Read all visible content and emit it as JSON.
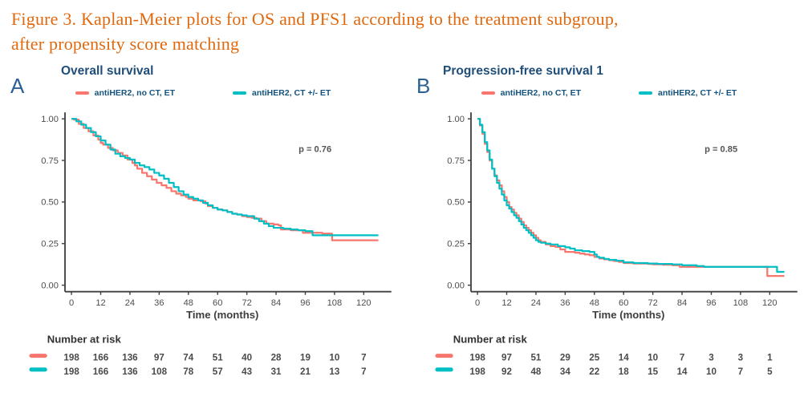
{
  "figure": {
    "title_line1": "Figure 3. Kaplan-Meier plots for OS and PFS1 according to the treatment subgroup,",
    "title_line2": "after propensity score matching"
  },
  "colors": {
    "title_orange": "#e0690f",
    "heading_navy": "#1f4e79",
    "panel_letter_blue": "#2d6094",
    "axis_gray": "#3f3f3f",
    "text_gray": "#4d4d4d",
    "series_red": "#f8766d",
    "series_teal": "#00bfc4"
  },
  "chart_data": [
    {
      "type": "line",
      "subtype": "kaplan-meier-step",
      "panel_label": "A",
      "title": "Overall survival",
      "xlabel": "Time (months)",
      "ylabel": "",
      "x_ticks": [
        0,
        12,
        24,
        36,
        48,
        60,
        72,
        84,
        96,
        108,
        120
      ],
      "y_ticks": [
        "0.00",
        "0.25",
        "0.50",
        "0.75",
        "1.00"
      ],
      "xlim": [
        0,
        126
      ],
      "ylim": [
        0,
        1
      ],
      "grid": false,
      "p_label": "p = 0.76",
      "p_x": 100,
      "p_y": 0.8,
      "legend": [
        {
          "name": "antiHER2, no CT, ET",
          "color": "#f8766d"
        },
        {
          "name": "antiHER2, CT +/- ET",
          "color": "#00bfc4"
        }
      ],
      "series": [
        {
          "name": "antiHER2, no CT, ET",
          "color": "#f8766d",
          "x": [
            0,
            1,
            3,
            5,
            7,
            9,
            11,
            12,
            13,
            15,
            17,
            19,
            21,
            23,
            25,
            26,
            27,
            29,
            31,
            33,
            35,
            37,
            39,
            41,
            43,
            45,
            47,
            48,
            50,
            53,
            55,
            56,
            58,
            60,
            62,
            64,
            66,
            68,
            70,
            72,
            74,
            76,
            78,
            80,
            83,
            85,
            86,
            90,
            95,
            103,
            107,
            126
          ],
          "y": [
            1.0,
            0.995,
            0.97,
            0.945,
            0.925,
            0.9,
            0.875,
            0.855,
            0.845,
            0.825,
            0.81,
            0.795,
            0.78,
            0.755,
            0.735,
            0.72,
            0.7,
            0.675,
            0.655,
            0.635,
            0.615,
            0.6,
            0.585,
            0.565,
            0.55,
            0.54,
            0.53,
            0.52,
            0.51,
            0.505,
            0.49,
            0.475,
            0.465,
            0.455,
            0.45,
            0.44,
            0.43,
            0.425,
            0.415,
            0.41,
            0.405,
            0.4,
            0.385,
            0.37,
            0.365,
            0.36,
            0.335,
            0.33,
            0.315,
            0.31,
            0.27,
            0.27
          ]
        },
        {
          "name": "antiHER2, CT +/- ET",
          "color": "#00bfc4",
          "x": [
            0,
            2,
            4,
            6,
            8,
            10,
            12,
            14,
            16,
            18,
            20,
            22,
            24,
            26,
            28,
            30,
            32,
            34,
            36,
            38,
            40,
            42,
            44,
            46,
            48,
            50,
            52,
            54,
            56,
            58,
            60,
            62,
            64,
            66,
            68,
            70,
            72,
            75,
            77,
            79,
            81,
            83,
            87,
            90,
            93,
            96,
            99,
            126
          ],
          "y": [
            1.0,
            0.985,
            0.965,
            0.945,
            0.92,
            0.895,
            0.87,
            0.845,
            0.815,
            0.79,
            0.775,
            0.765,
            0.755,
            0.735,
            0.72,
            0.71,
            0.695,
            0.675,
            0.66,
            0.64,
            0.615,
            0.59,
            0.565,
            0.545,
            0.53,
            0.52,
            0.51,
            0.495,
            0.48,
            0.465,
            0.455,
            0.45,
            0.44,
            0.43,
            0.425,
            0.42,
            0.415,
            0.4,
            0.385,
            0.37,
            0.355,
            0.345,
            0.34,
            0.335,
            0.33,
            0.325,
            0.3,
            0.3
          ]
        }
      ],
      "number_at_risk": {
        "title": "Number at risk",
        "rows": [
          {
            "name": "antiHER2, no CT, ET",
            "color": "#f8766d",
            "values": [
              198,
              166,
              136,
              97,
              74,
              51,
              40,
              28,
              19,
              10,
              7
            ]
          },
          {
            "name": "antiHER2, CT +/- ET",
            "color": "#00bfc4",
            "values": [
              198,
              166,
              136,
              108,
              78,
              57,
              43,
              31,
              21,
              13,
              7
            ]
          }
        ]
      }
    },
    {
      "type": "line",
      "subtype": "kaplan-meier-step",
      "panel_label": "B",
      "title": "Progression-free survival 1",
      "xlabel": "Time (months)",
      "ylabel": "",
      "x_ticks": [
        0,
        12,
        24,
        36,
        48,
        60,
        72,
        84,
        96,
        108,
        120
      ],
      "y_ticks": [
        "0.00",
        "0.25",
        "0.50",
        "0.75",
        "1.00"
      ],
      "xlim": [
        0,
        126
      ],
      "ylim": [
        0,
        1
      ],
      "grid": false,
      "p_label": "p = 0.85",
      "p_x": 100,
      "p_y": 0.8,
      "legend": [
        {
          "name": "antiHER2, no CT, ET",
          "color": "#f8766d"
        },
        {
          "name": "antiHER2, CT +/- ET",
          "color": "#00bfc4"
        }
      ],
      "series": [
        {
          "name": "antiHER2, no CT, ET",
          "color": "#f8766d",
          "x": [
            0,
            1,
            2,
            3,
            4,
            5,
            6,
            7,
            8,
            9,
            10,
            11,
            12,
            13,
            14,
            15,
            16,
            17,
            18,
            19,
            20,
            21,
            22,
            23,
            24,
            25,
            26,
            28,
            30,
            32,
            34,
            36,
            40,
            42,
            44,
            46,
            48,
            50,
            52,
            54,
            56,
            58,
            60,
            64,
            70,
            72,
            76,
            80,
            83,
            96,
            108,
            119,
            126
          ],
          "y": [
            1.0,
            0.96,
            0.91,
            0.85,
            0.8,
            0.75,
            0.7,
            0.66,
            0.63,
            0.6,
            0.565,
            0.53,
            0.5,
            0.47,
            0.455,
            0.435,
            0.42,
            0.4,
            0.38,
            0.36,
            0.345,
            0.33,
            0.315,
            0.3,
            0.285,
            0.27,
            0.26,
            0.245,
            0.235,
            0.23,
            0.215,
            0.2,
            0.195,
            0.19,
            0.185,
            0.18,
            0.17,
            0.16,
            0.155,
            0.15,
            0.145,
            0.14,
            0.133,
            0.13,
            0.128,
            0.125,
            0.123,
            0.12,
            0.11,
            0.11,
            0.11,
            0.055,
            0.055
          ]
        },
        {
          "name": "antiHER2, CT +/- ET",
          "color": "#00bfc4",
          "x": [
            0,
            1,
            2,
            3,
            4,
            5,
            6,
            7,
            8,
            9,
            10,
            11,
            12,
            13,
            14,
            15,
            16,
            17,
            18,
            19,
            20,
            21,
            22,
            23,
            24,
            25,
            26,
            28,
            30,
            33,
            36,
            38,
            40,
            43,
            46,
            48,
            49,
            50,
            52,
            54,
            57,
            60,
            64,
            70,
            74,
            80,
            84,
            90,
            93,
            108,
            122,
            123,
            126
          ],
          "y": [
            1.0,
            0.965,
            0.92,
            0.86,
            0.81,
            0.755,
            0.7,
            0.655,
            0.615,
            0.58,
            0.545,
            0.51,
            0.48,
            0.46,
            0.44,
            0.42,
            0.405,
            0.385,
            0.365,
            0.345,
            0.33,
            0.315,
            0.3,
            0.285,
            0.27,
            0.26,
            0.255,
            0.25,
            0.245,
            0.235,
            0.228,
            0.22,
            0.21,
            0.205,
            0.2,
            0.185,
            0.17,
            0.165,
            0.158,
            0.152,
            0.147,
            0.137,
            0.133,
            0.13,
            0.128,
            0.125,
            0.12,
            0.115,
            0.11,
            0.11,
            0.11,
            0.08,
            0.08
          ]
        }
      ],
      "number_at_risk": {
        "title": "Number at risk",
        "rows": [
          {
            "name": "antiHER2, no CT, ET",
            "color": "#f8766d",
            "values": [
              198,
              97,
              51,
              29,
              25,
              14,
              10,
              7,
              3,
              3,
              1
            ]
          },
          {
            "name": "antiHER2, CT +/- ET",
            "color": "#00bfc4",
            "values": [
              198,
              92,
              48,
              34,
              22,
              18,
              15,
              14,
              10,
              7,
              5
            ]
          }
        ]
      }
    }
  ]
}
